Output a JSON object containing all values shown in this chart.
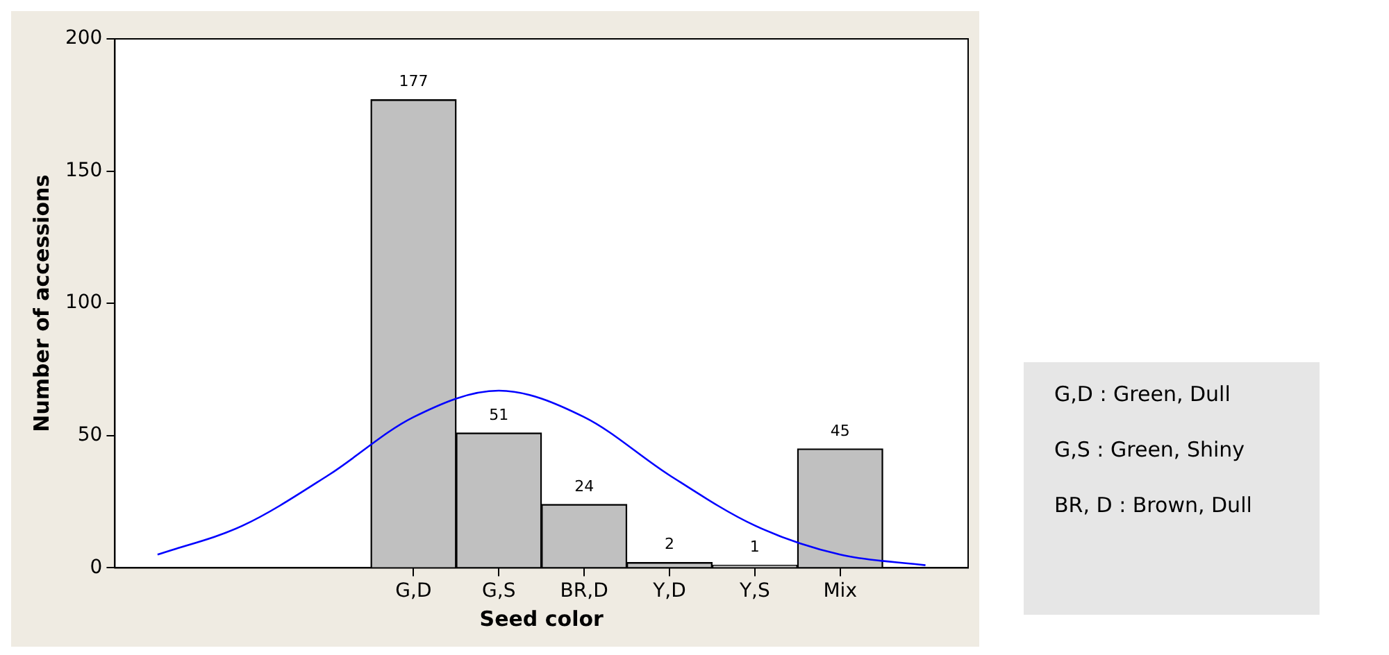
{
  "chart_data": {
    "type": "bar",
    "xlabel": "Seed color",
    "ylabel": "Number of accessions",
    "categories": [
      null,
      null,
      null,
      "G,D",
      "G,S",
      "BR,D",
      "Y,D",
      "Y,S",
      "Mix",
      null
    ],
    "ylim": [
      0,
      200
    ],
    "yticks": [
      0,
      50,
      100,
      150,
      200
    ],
    "series": [
      {
        "color": "#c0c0c0",
        "values": [
          null,
          null,
          null,
          177,
          51,
          24,
          2,
          1,
          45,
          null
        ],
        "value_labels": [
          null,
          null,
          null,
          "177",
          "51",
          "24",
          "2",
          "1",
          "45",
          null
        ]
      },
      {
        "type": "line",
        "color": "#0000ff",
        "marker": "none",
        "values": [
          5,
          16,
          35,
          57,
          67,
          57,
          35,
          16,
          5,
          1
        ]
      }
    ],
    "grid": false,
    "legend": false,
    "annotations": [
      "G,D : Green, Dull",
      "G,S : Green, Shiny",
      "BR, D : Brown, Dull"
    ]
  }
}
